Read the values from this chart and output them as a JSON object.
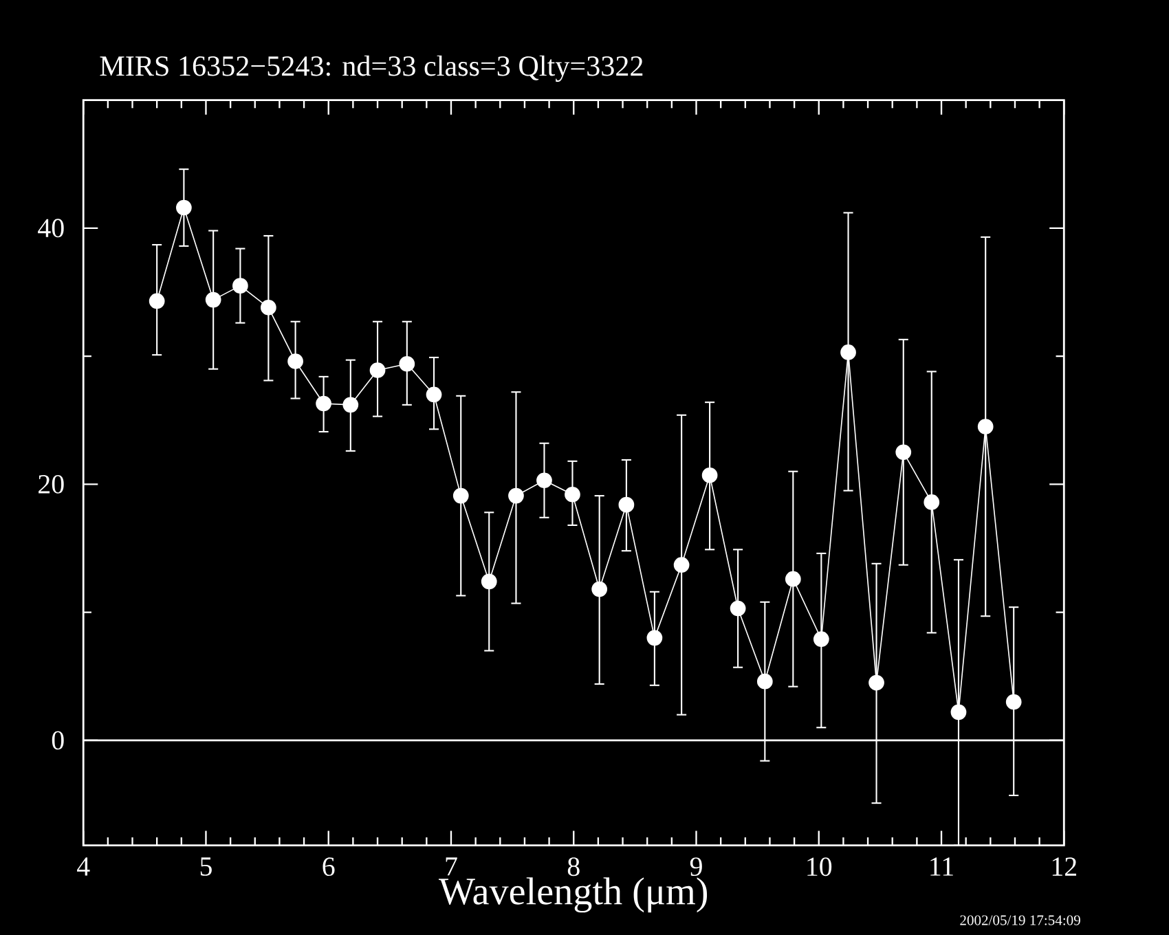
{
  "chart_data": {
    "type": "line",
    "title": "MIRS 16352−5243:   nd=33   class=3   Qlty=3322",
    "xlabel": "Wavelength (μm)",
    "x": [
      4.6,
      4.82,
      5.06,
      5.28,
      5.51,
      5.73,
      5.96,
      6.18,
      6.4,
      6.64,
      6.86,
      7.08,
      7.31,
      7.53,
      7.76,
      7.99,
      8.21,
      8.43,
      8.66,
      8.88,
      9.11,
      9.34,
      9.56,
      9.79,
      10.02,
      10.24,
      10.47,
      10.69,
      10.92,
      11.14,
      11.36,
      11.59
    ],
    "series": [
      {
        "color": "#ffffff",
        "values": [
          34.3,
          41.6,
          34.4,
          35.5,
          33.8,
          29.6,
          26.3,
          26.2,
          28.9,
          29.4,
          27.0,
          19.1,
          12.4,
          19.1,
          20.3,
          19.2,
          11.8,
          18.4,
          8.0,
          13.7,
          20.7,
          10.3,
          4.6,
          12.6,
          7.9,
          30.3,
          4.5,
          22.5,
          18.6,
          2.2,
          24.5,
          3.0
        ],
        "errors": [
          [
            30.1,
            38.7
          ],
          [
            38.6,
            44.6
          ],
          [
            29.0,
            39.8
          ],
          [
            32.6,
            38.4
          ],
          [
            28.1,
            39.4
          ],
          [
            26.7,
            32.7
          ],
          [
            24.1,
            28.4
          ],
          [
            22.6,
            29.7
          ],
          [
            25.3,
            32.7
          ],
          [
            26.2,
            32.7
          ],
          [
            24.3,
            29.9
          ],
          [
            11.3,
            26.9
          ],
          [
            7.0,
            17.8
          ],
          [
            10.7,
            27.2
          ],
          [
            17.4,
            23.2
          ],
          [
            16.8,
            21.8
          ],
          [
            4.4,
            19.1
          ],
          [
            14.8,
            21.9
          ],
          [
            4.3,
            11.6
          ],
          [
            2.0,
            25.4
          ],
          [
            14.9,
            26.4
          ],
          [
            5.7,
            14.9
          ],
          [
            -1.6,
            10.8
          ],
          [
            4.2,
            21.0
          ],
          [
            1.0,
            14.6
          ],
          [
            19.5,
            41.2
          ],
          [
            -4.9,
            13.8
          ],
          [
            13.7,
            31.3
          ],
          [
            8.4,
            28.8
          ],
          [
            -8.2,
            14.1
          ],
          [
            9.7,
            39.3
          ],
          [
            -4.3,
            10.4
          ]
        ]
      }
    ],
    "xlim": [
      4,
      12
    ],
    "ylim": [
      -8.2,
      50
    ],
    "xticks": [
      4,
      5,
      6,
      7,
      8,
      9,
      10,
      11,
      12
    ],
    "yticks": [
      0,
      20,
      40
    ],
    "ref_lines": [
      {
        "axis": "y",
        "value": 0,
        "color": "#ffffff"
      }
    ],
    "marker": "circle",
    "line_style": "solid",
    "annotations": [
      "2002/05/19 17:54:09"
    ]
  }
}
